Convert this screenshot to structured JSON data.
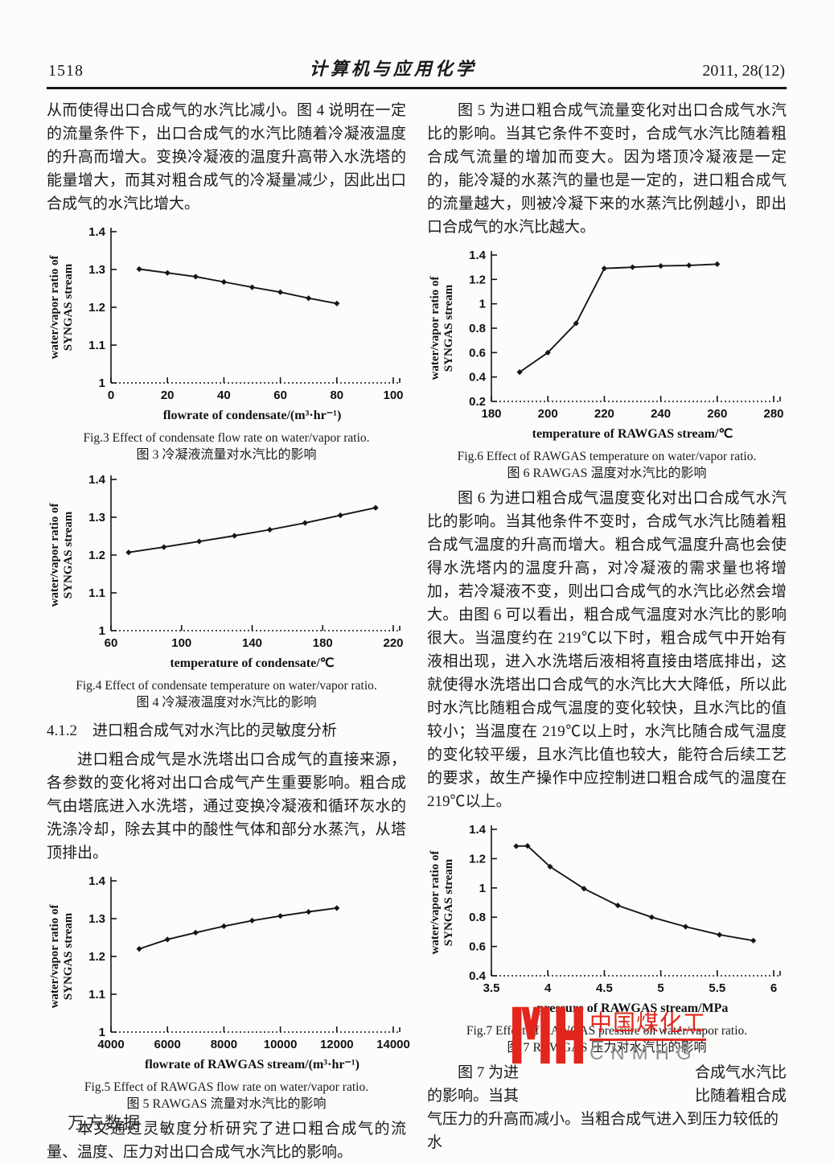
{
  "header": {
    "page_number": "1518",
    "journal_title": "计算机与应用化学",
    "issue": "2011, 28(12)"
  },
  "left_column": {
    "para1": "从而使得出口合成气的水汽比减小。图 4 说明在一定的流量条件下，出口合成气的水汽比随着冷凝液温度的升高而增大。变换冷凝液的温度升高带入水洗塔的能量增大，而其对粗合成气的冷凝量减少，因此出口合成气的水汽比增大。",
    "fig3_caption_en": "Fig.3    Effect of condensate flow rate on water/vapor ratio.",
    "fig3_caption_zh": "图 3    冷凝液流量对水汽比的影响",
    "fig4_caption_en": "Fig.4    Effect of condensate temperature on water/vapor ratio.",
    "fig4_caption_zh": "图 4    冷凝液温度对水汽比的影响",
    "section_heading": "4.1.2　进口粗合成气对水汽比的灵敏度分析",
    "para2": "进口粗合成气是水洗塔出口合成气的直接来源，各参数的变化将对出口合成气产生重要影响。粗合成气由塔底进入水洗塔，通过变换冷凝液和循环灰水的洗涤冷却，除去其中的酸性气体和部分水蒸汽，从塔顶排出。",
    "fig5_caption_en": "Fig.5    Effect of RAWGAS flow rate on water/vapor ratio.",
    "fig5_caption_zh": "图 5    RAWGAS 流量对水汽比的影响",
    "para3": "本文通过灵敏度分析研究了进口粗合成气的流量、温度、压力对出口合成气水汽比的影响。"
  },
  "right_column": {
    "para1": "图 5 为进口粗合成气流量变化对出口合成气水汽比的影响。当其它条件不变时，合成气水汽比随着粗合成气流量的增加而变大。因为塔顶冷凝液是一定的，能冷凝的水蒸汽的量也是一定的，进口粗合成气的流量越大，则被冷凝下来的水蒸汽比例越小，即出口合成气的水汽比越大。",
    "fig6_caption_en": "Fig.6    Effect of RAWGAS temperature on water/vapor ratio.",
    "fig6_caption_zh": "图 6    RAWGAS 温度对水汽比的影响",
    "para2": "图 6 为进口粗合成气温度变化对出口合成气水汽比的影响。当其他条件不变时，合成气水汽比随着粗合成气温度的升高而增大。粗合成气温度升高也会使得水洗塔内的温度升高，对冷凝液的需求量也将增加，若冷凝液不变，则出口合成气的水汽比必然会增大。由图 6 可以看出，粗合成气温度对水汽比的影响很大。当温度约在 219℃以下时，粗合成气中开始有液相出现，进入水洗塔后液相将直接由塔底排出，这就使得水洗塔出口合成气的水汽比大大降低，所以此时水汽比随粗合成气温度的变化较快，且水汽比的值较小；当温度在 219℃以上时，水汽比随合成气温度的变化较平缓，且水汽比值也较大，能符合后续工艺的要求，故生产操作中应控制进口粗合成气的温度在 219℃以上。",
    "fig7_caption_en": "Fig.7    Effect of RAWGAS pressure on water/vapor ratio.",
    "fig7_caption_zh": "图 7    RAWGAS 压力对水汽比的影响",
    "para3": {
      "l1a": "图 7 为进",
      "l1b": "合成气水汽比",
      "l2a": "的影响。当其",
      "l2b": "比随着粗合成",
      "l3": "气压力的升高而减小。当粗合成气进入到压力较低的水"
    }
  },
  "watermark": {
    "zh_text": "中国煤化工",
    "en_text": "CNMHG",
    "red_color": "#e2261d",
    "gray_color": "#8f8f8f"
  },
  "footer": {
    "wanfang": "万方数据"
  },
  "chart_data": [
    {
      "id": "fig3",
      "type": "line",
      "x": [
        10,
        20,
        30,
        40,
        50,
        60,
        70,
        80
      ],
      "y": [
        1.301,
        1.291,
        1.281,
        1.267,
        1.253,
        1.24,
        1.224,
        1.21
      ],
      "xlim": [
        0,
        100
      ],
      "ylim": [
        1,
        1.4
      ],
      "xticks": [
        "0",
        "20",
        "40",
        "60",
        "80",
        "100"
      ],
      "yticks": [
        "1",
        "1.1",
        "1.2",
        "1.3",
        "1.4"
      ],
      "xlabel": "flowrate of condensate/(m³·hr⁻¹)",
      "ylabel_line1": "water/vapor ratio of",
      "ylabel_line2": "SYNGAS stream",
      "grid": false,
      "legend": "none"
    },
    {
      "id": "fig4",
      "type": "line",
      "x": [
        70,
        90,
        110,
        130,
        150,
        170,
        190,
        210
      ],
      "y": [
        1.207,
        1.221,
        1.236,
        1.251,
        1.267,
        1.285,
        1.305,
        1.325
      ],
      "xlim": [
        60,
        220
      ],
      "ylim": [
        1,
        1.4
      ],
      "xticks": [
        "60",
        "100",
        "140",
        "180",
        "220"
      ],
      "yticks": [
        "1",
        "1.1",
        "1.2",
        "1.3",
        "1.4"
      ],
      "xlabel": "temperature of condensate/℃",
      "ylabel_line1": "water/vapor ratio of",
      "ylabel_line2": "SYNGAS stream",
      "grid": false,
      "legend": "none"
    },
    {
      "id": "fig5",
      "type": "line",
      "x": [
        5000,
        6000,
        7000,
        8000,
        9000,
        10000,
        11000,
        12000
      ],
      "y": [
        1.22,
        1.245,
        1.263,
        1.28,
        1.295,
        1.307,
        1.318,
        1.328
      ],
      "xlim": [
        4000,
        14000
      ],
      "ylim": [
        1,
        1.4
      ],
      "xticks": [
        "4000",
        "6000",
        "8000",
        "10000",
        "12000",
        "14000"
      ],
      "yticks": [
        "1",
        "1.1",
        "1.2",
        "1.3",
        "1.4"
      ],
      "xlabel": "flowrate of RAWGAS stream/(m³·hr⁻¹)",
      "ylabel_line1": "water/vapor ratio of",
      "ylabel_line2": "SYNGAS stream",
      "grid": false,
      "legend": "none"
    },
    {
      "id": "fig6",
      "type": "line",
      "x": [
        190,
        200,
        210,
        220,
        230,
        240,
        250,
        260
      ],
      "y": [
        0.44,
        0.6,
        0.84,
        1.29,
        1.3,
        1.31,
        1.315,
        1.325
      ],
      "xlim": [
        180,
        280
      ],
      "ylim": [
        0.2,
        1.4
      ],
      "xticks": [
        "180",
        "200",
        "220",
        "240",
        "260",
        "280"
      ],
      "yticks": [
        "0.2",
        "0.4",
        "0.6",
        "0.8",
        "1",
        "1.2",
        "1.4"
      ],
      "xlabel": "temperature of RAWGAS stream/℃",
      "ylabel_line1": "water/vapor ratio of",
      "ylabel_line2": "SYNGAS stream",
      "grid": false,
      "legend": "none"
    },
    {
      "id": "fig7",
      "type": "line",
      "x": [
        3.72,
        3.82,
        4.02,
        4.32,
        4.62,
        4.92,
        5.22,
        5.52,
        5.82
      ],
      "y": [
        1.285,
        1.287,
        1.145,
        0.995,
        0.88,
        0.8,
        0.735,
        0.68,
        0.64
      ],
      "xlim": [
        3.5,
        6
      ],
      "ylim": [
        0.4,
        1.4
      ],
      "xticks": [
        "3.5",
        "4",
        "4.5",
        "5",
        "5.5",
        "6"
      ],
      "yticks": [
        "0.4",
        "0.6",
        "0.8",
        "1",
        "1.2",
        "1.4"
      ],
      "xlabel": "pressure of RAWGAS stream/MPa",
      "ylabel_line1": "water/vapor ratio of",
      "ylabel_line2": "SYNGAS stream",
      "grid": false,
      "legend": "none"
    }
  ]
}
